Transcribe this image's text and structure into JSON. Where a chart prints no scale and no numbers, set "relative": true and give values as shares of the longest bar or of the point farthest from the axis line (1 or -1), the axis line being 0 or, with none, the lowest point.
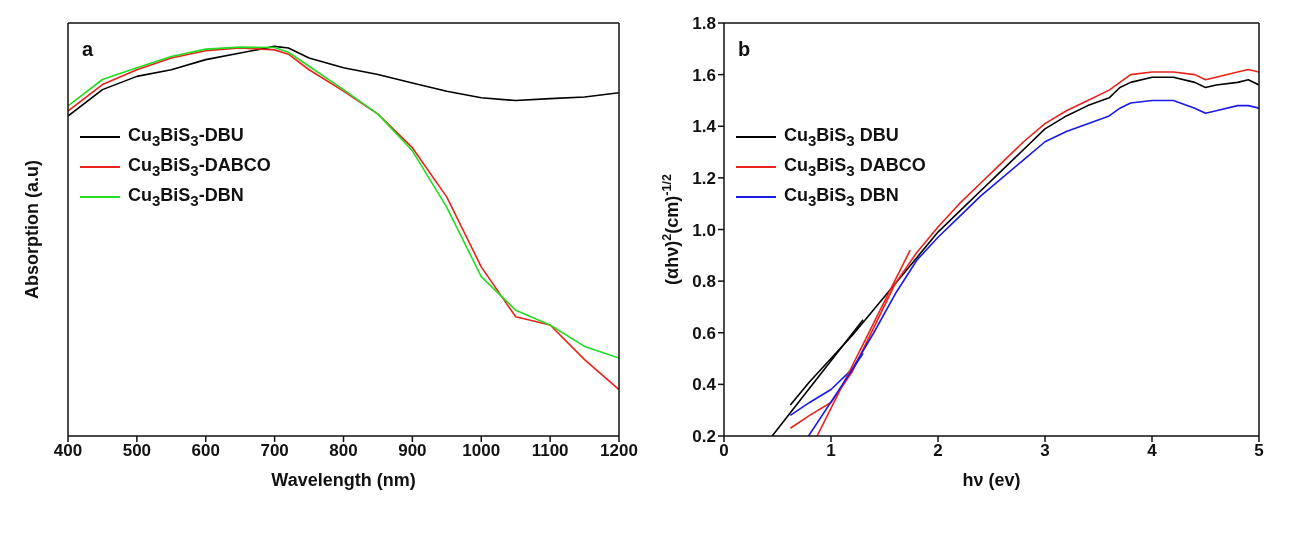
{
  "chart_data": [
    {
      "type": "line",
      "title": "a",
      "xlabel": "Wavelength (nm)",
      "ylabel": "Absorption (a.u)",
      "relative": true,
      "tick_labels": "x",
      "legend": "top left",
      "xlim": [
        400,
        1200
      ],
      "xticks": [
        400,
        500,
        600,
        700,
        800,
        900,
        1000,
        1100,
        1200
      ],
      "x": [
        400,
        450,
        500,
        550,
        600,
        650,
        700,
        720,
        750,
        800,
        850,
        900,
        950,
        1000,
        1050,
        1100,
        1150,
        1200
      ],
      "series": [
        {
          "name": "Cu$_{3}$BiS$_{3}$-DBU",
          "color": "#000000",
          "values": [
            0.821,
            0.889,
            0.923,
            0.94,
            0.966,
            0.983,
            1.0,
            0.996,
            0.97,
            0.945,
            0.928,
            0.906,
            0.885,
            0.868,
            0.861,
            0.866,
            0.87,
            0.881
          ]
        },
        {
          "name": "Cu$_{3}$BiS$_{3}$-DABCO",
          "color": "#e8231c",
          "values": [
            0.834,
            0.902,
            0.94,
            0.97,
            0.989,
            0.996,
            0.991,
            0.98,
            0.94,
            0.885,
            0.826,
            0.74,
            0.613,
            0.434,
            0.306,
            0.285,
            0.196,
            0.119
          ]
        },
        {
          "name": "Cu$_{3}$BiS$_{3}$-DBN",
          "color": "#22dd22",
          "values": [
            0.847,
            0.915,
            0.945,
            0.974,
            0.993,
            0.998,
            0.997,
            0.985,
            0.949,
            0.889,
            0.826,
            0.732,
            0.587,
            0.409,
            0.323,
            0.285,
            0.23,
            0.2
          ]
        }
      ]
    },
    {
      "type": "line",
      "title": "b",
      "xlabel": "hν (ev)",
      "ylabel": "(αhν)$^{2}$(cm)$^{-1/2}$",
      "legend": "top left",
      "xlim": [
        0,
        5
      ],
      "xticks": [
        0,
        1,
        2,
        3,
        4,
        5
      ],
      "ylim": [
        0.2,
        1.8
      ],
      "yticks": [
        0.2,
        0.4,
        0.6,
        0.8,
        {
          "value": 1,
          "label": "1.0"
        },
        1.2,
        1.4,
        1.6,
        1.8
      ],
      "x": [
        0.62,
        0.8,
        1.0,
        1.2,
        1.4,
        1.6,
        1.8,
        2.0,
        2.2,
        2.4,
        2.6,
        2.8,
        3.0,
        3.2,
        3.4,
        3.6,
        3.7,
        3.8,
        4.0,
        4.2,
        4.4,
        4.5,
        4.6,
        4.8,
        4.9,
        5.0
      ],
      "series": [
        {
          "name": "Cu$_{3}$BiS$_{3}$ DBU",
          "color": "#000000",
          "values": [
            0.32,
            0.41,
            0.5,
            0.59,
            0.69,
            0.79,
            0.89,
            0.99,
            1.07,
            1.15,
            1.23,
            1.31,
            1.39,
            1.44,
            1.48,
            1.51,
            1.55,
            1.57,
            1.59,
            1.59,
            1.57,
            1.55,
            1.56,
            1.57,
            1.58,
            1.56
          ]
        },
        {
          "name": "Cu$_{3}$BiS$_{3}$ DABCO",
          "color": "#e8231c",
          "values": [
            0.23,
            0.28,
            0.33,
            0.45,
            0.62,
            0.79,
            0.91,
            1.01,
            1.1,
            1.18,
            1.26,
            1.34,
            1.41,
            1.46,
            1.5,
            1.54,
            1.57,
            1.6,
            1.61,
            1.61,
            1.6,
            1.58,
            1.59,
            1.61,
            1.62,
            1.61
          ]
        },
        {
          "name": "Cu$_{3}$BiS$_{3}$ DBN",
          "color": "#1a1ae6",
          "values": [
            0.28,
            0.33,
            0.38,
            0.46,
            0.6,
            0.75,
            0.88,
            0.97,
            1.05,
            1.13,
            1.2,
            1.27,
            1.34,
            1.38,
            1.41,
            1.44,
            1.47,
            1.49,
            1.5,
            1.5,
            1.47,
            1.45,
            1.46,
            1.48,
            1.48,
            1.47
          ]
        },
        {
          "type": "line",
          "color": "#000000",
          "x": [
            0.45,
            1.3
          ],
          "values": [
            0.2,
            0.65
          ]
        },
        {
          "type": "line",
          "color": "#e8231c",
          "x": [
            0.87,
            1.74
          ],
          "values": [
            0.2,
            0.92
          ]
        },
        {
          "type": "line",
          "color": "#1a1ae6",
          "x": [
            0.79,
            1.3
          ],
          "values": [
            0.2,
            0.52
          ]
        }
      ]
    }
  ]
}
